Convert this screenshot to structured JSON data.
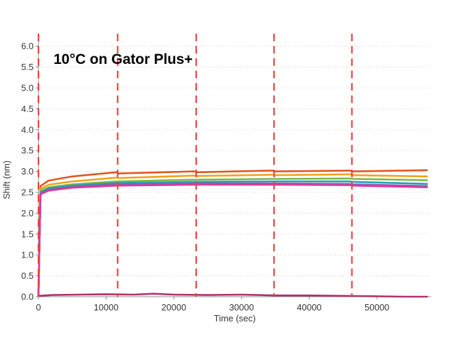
{
  "chart_data": {
    "type": "line",
    "title": "10°C on Gator Plus+",
    "xlabel": "Time (sec)",
    "ylabel": "Shift (nm)",
    "xlim": [
      0,
      58000
    ],
    "ylim": [
      0.0,
      6.2
    ],
    "xticks": [
      0,
      10000,
      20000,
      30000,
      40000,
      50000
    ],
    "xtick_labels": [
      "0",
      "10000",
      "20000",
      "30000",
      "40000",
      "50000"
    ],
    "yticks": [
      0.0,
      0.5,
      1.0,
      1.5,
      2.0,
      2.5,
      3.0,
      3.5,
      4.0,
      4.5,
      5.0,
      5.5,
      6.0
    ],
    "ytick_labels": [
      "0.0",
      "0.5",
      "1.0",
      "1.5",
      "2.0",
      "2.5",
      "3.0",
      "3.5",
      "4.0",
      "4.5",
      "5.0",
      "5.5",
      "6.0"
    ],
    "grid": true,
    "step_markers_x": [
      0,
      11700,
      23300,
      34800,
      46300
    ],
    "step_marker_color": "#e8413c",
    "series": [
      {
        "color": "#e0561f",
        "x": [
          0,
          300,
          1500,
          5000,
          11500,
          11800,
          23000,
          23500,
          34500,
          35000,
          46000,
          46500,
          57500
        ],
        "y": [
          0.0,
          2.65,
          2.78,
          2.88,
          2.98,
          2.95,
          3.0,
          2.98,
          3.02,
          3.0,
          3.02,
          3.0,
          3.03
        ]
      },
      {
        "color": "#f0a21b",
        "x": [
          0,
          300,
          1500,
          5000,
          11500,
          11800,
          23000,
          23500,
          34500,
          35000,
          46000,
          46500,
          57500
        ],
        "y": [
          0.0,
          2.58,
          2.68,
          2.76,
          2.85,
          2.84,
          2.9,
          2.89,
          2.92,
          2.91,
          2.93,
          2.91,
          2.88
        ]
      },
      {
        "color": "#7ab648",
        "x": [
          0,
          300,
          1500,
          5000,
          11500,
          11800,
          23000,
          23500,
          34500,
          35000,
          46000,
          46500,
          57500
        ],
        "y": [
          0.0,
          2.53,
          2.62,
          2.69,
          2.76,
          2.76,
          2.8,
          2.8,
          2.82,
          2.82,
          2.83,
          2.82,
          2.79
        ]
      },
      {
        "color": "#1f9fb4",
        "x": [
          0,
          300,
          1500,
          5000,
          11500,
          11800,
          23000,
          23500,
          34500,
          35000,
          46000,
          46500,
          57500
        ],
        "y": [
          0.0,
          2.5,
          2.59,
          2.66,
          2.72,
          2.72,
          2.75,
          2.75,
          2.76,
          2.76,
          2.76,
          2.75,
          2.7
        ]
      },
      {
        "color": "#8e5bb5",
        "x": [
          0,
          300,
          1500,
          5000,
          11500,
          11800,
          23000,
          23500,
          34500,
          35000,
          46000,
          46500,
          57500
        ],
        "y": [
          0.0,
          2.47,
          2.56,
          2.63,
          2.69,
          2.69,
          2.71,
          2.71,
          2.71,
          2.71,
          2.7,
          2.69,
          2.65
        ]
      },
      {
        "color": "#e0379b",
        "x": [
          0,
          300,
          1500,
          5000,
          11500,
          11800,
          23000,
          23500,
          34500,
          35000,
          46000,
          46500,
          57500
        ],
        "y": [
          0.0,
          2.45,
          2.54,
          2.61,
          2.66,
          2.66,
          2.68,
          2.68,
          2.68,
          2.68,
          2.67,
          2.66,
          2.62
        ]
      },
      {
        "color": "#b0306e",
        "x": [
          0,
          2000,
          6000,
          10000,
          14000,
          17000,
          20000,
          25000,
          30000,
          35000,
          40000,
          45000,
          50000,
          54000,
          57500
        ],
        "y": [
          0.02,
          0.04,
          0.05,
          0.06,
          0.05,
          0.07,
          0.05,
          0.04,
          0.05,
          0.03,
          0.03,
          0.02,
          0.01,
          0.0,
          0.0
        ]
      }
    ]
  }
}
